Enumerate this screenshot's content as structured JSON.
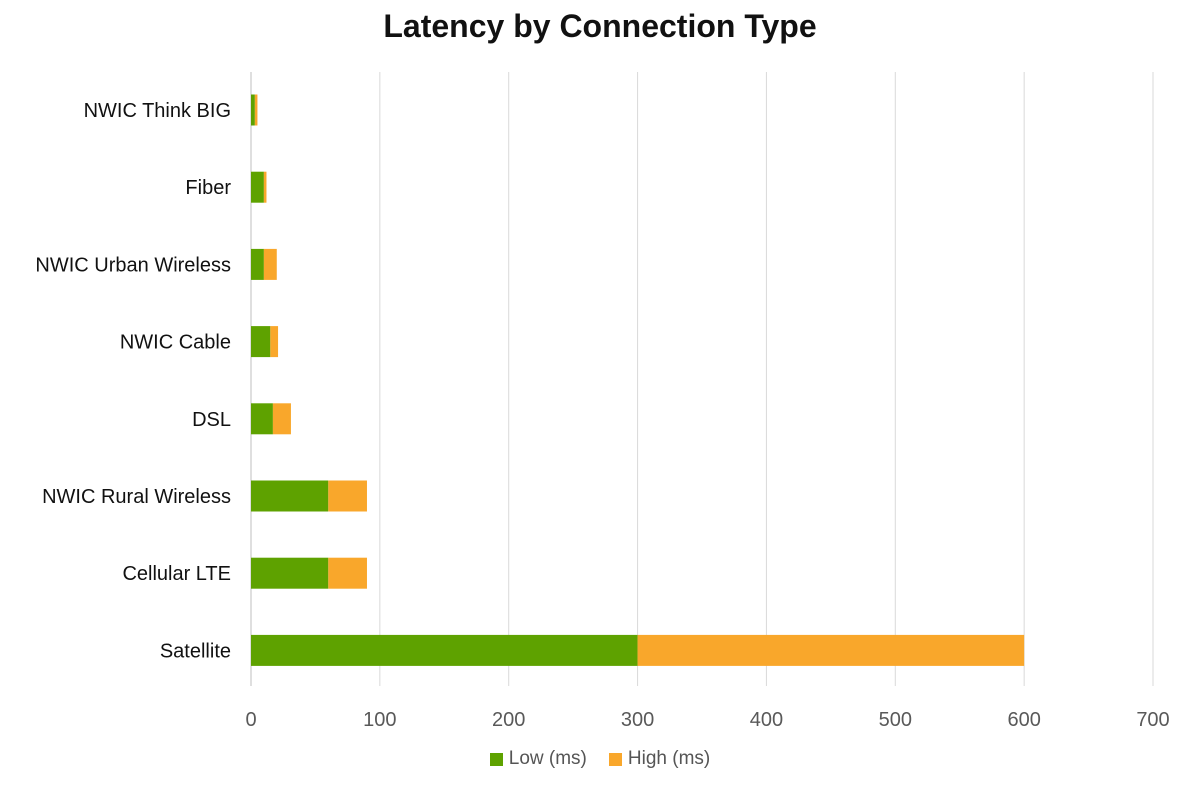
{
  "chart_data": {
    "type": "bar",
    "orientation": "horizontal",
    "stacked": true,
    "title": "Latency by Connection Type",
    "xlabel": "",
    "ylabel": "",
    "categories": [
      "NWIC Think BIG",
      "Fiber",
      "NWIC Urban Wireless",
      "NWIC Cable",
      "DSL",
      "NWIC Rural Wireless",
      "Cellular LTE",
      "Satellite"
    ],
    "series": [
      {
        "name": "Low (ms)",
        "color": "#5ea200",
        "values": [
          3,
          10,
          10,
          15,
          17,
          60,
          60,
          300
        ]
      },
      {
        "name": "High (ms)",
        "color": "#f9a72b",
        "values": [
          2,
          2,
          10,
          6,
          14,
          30,
          30,
          300
        ]
      }
    ],
    "xlim": [
      0,
      700
    ],
    "xticks": [
      0,
      100,
      200,
      300,
      400,
      500,
      600,
      700
    ],
    "grid": true,
    "legend_position": "bottom"
  }
}
